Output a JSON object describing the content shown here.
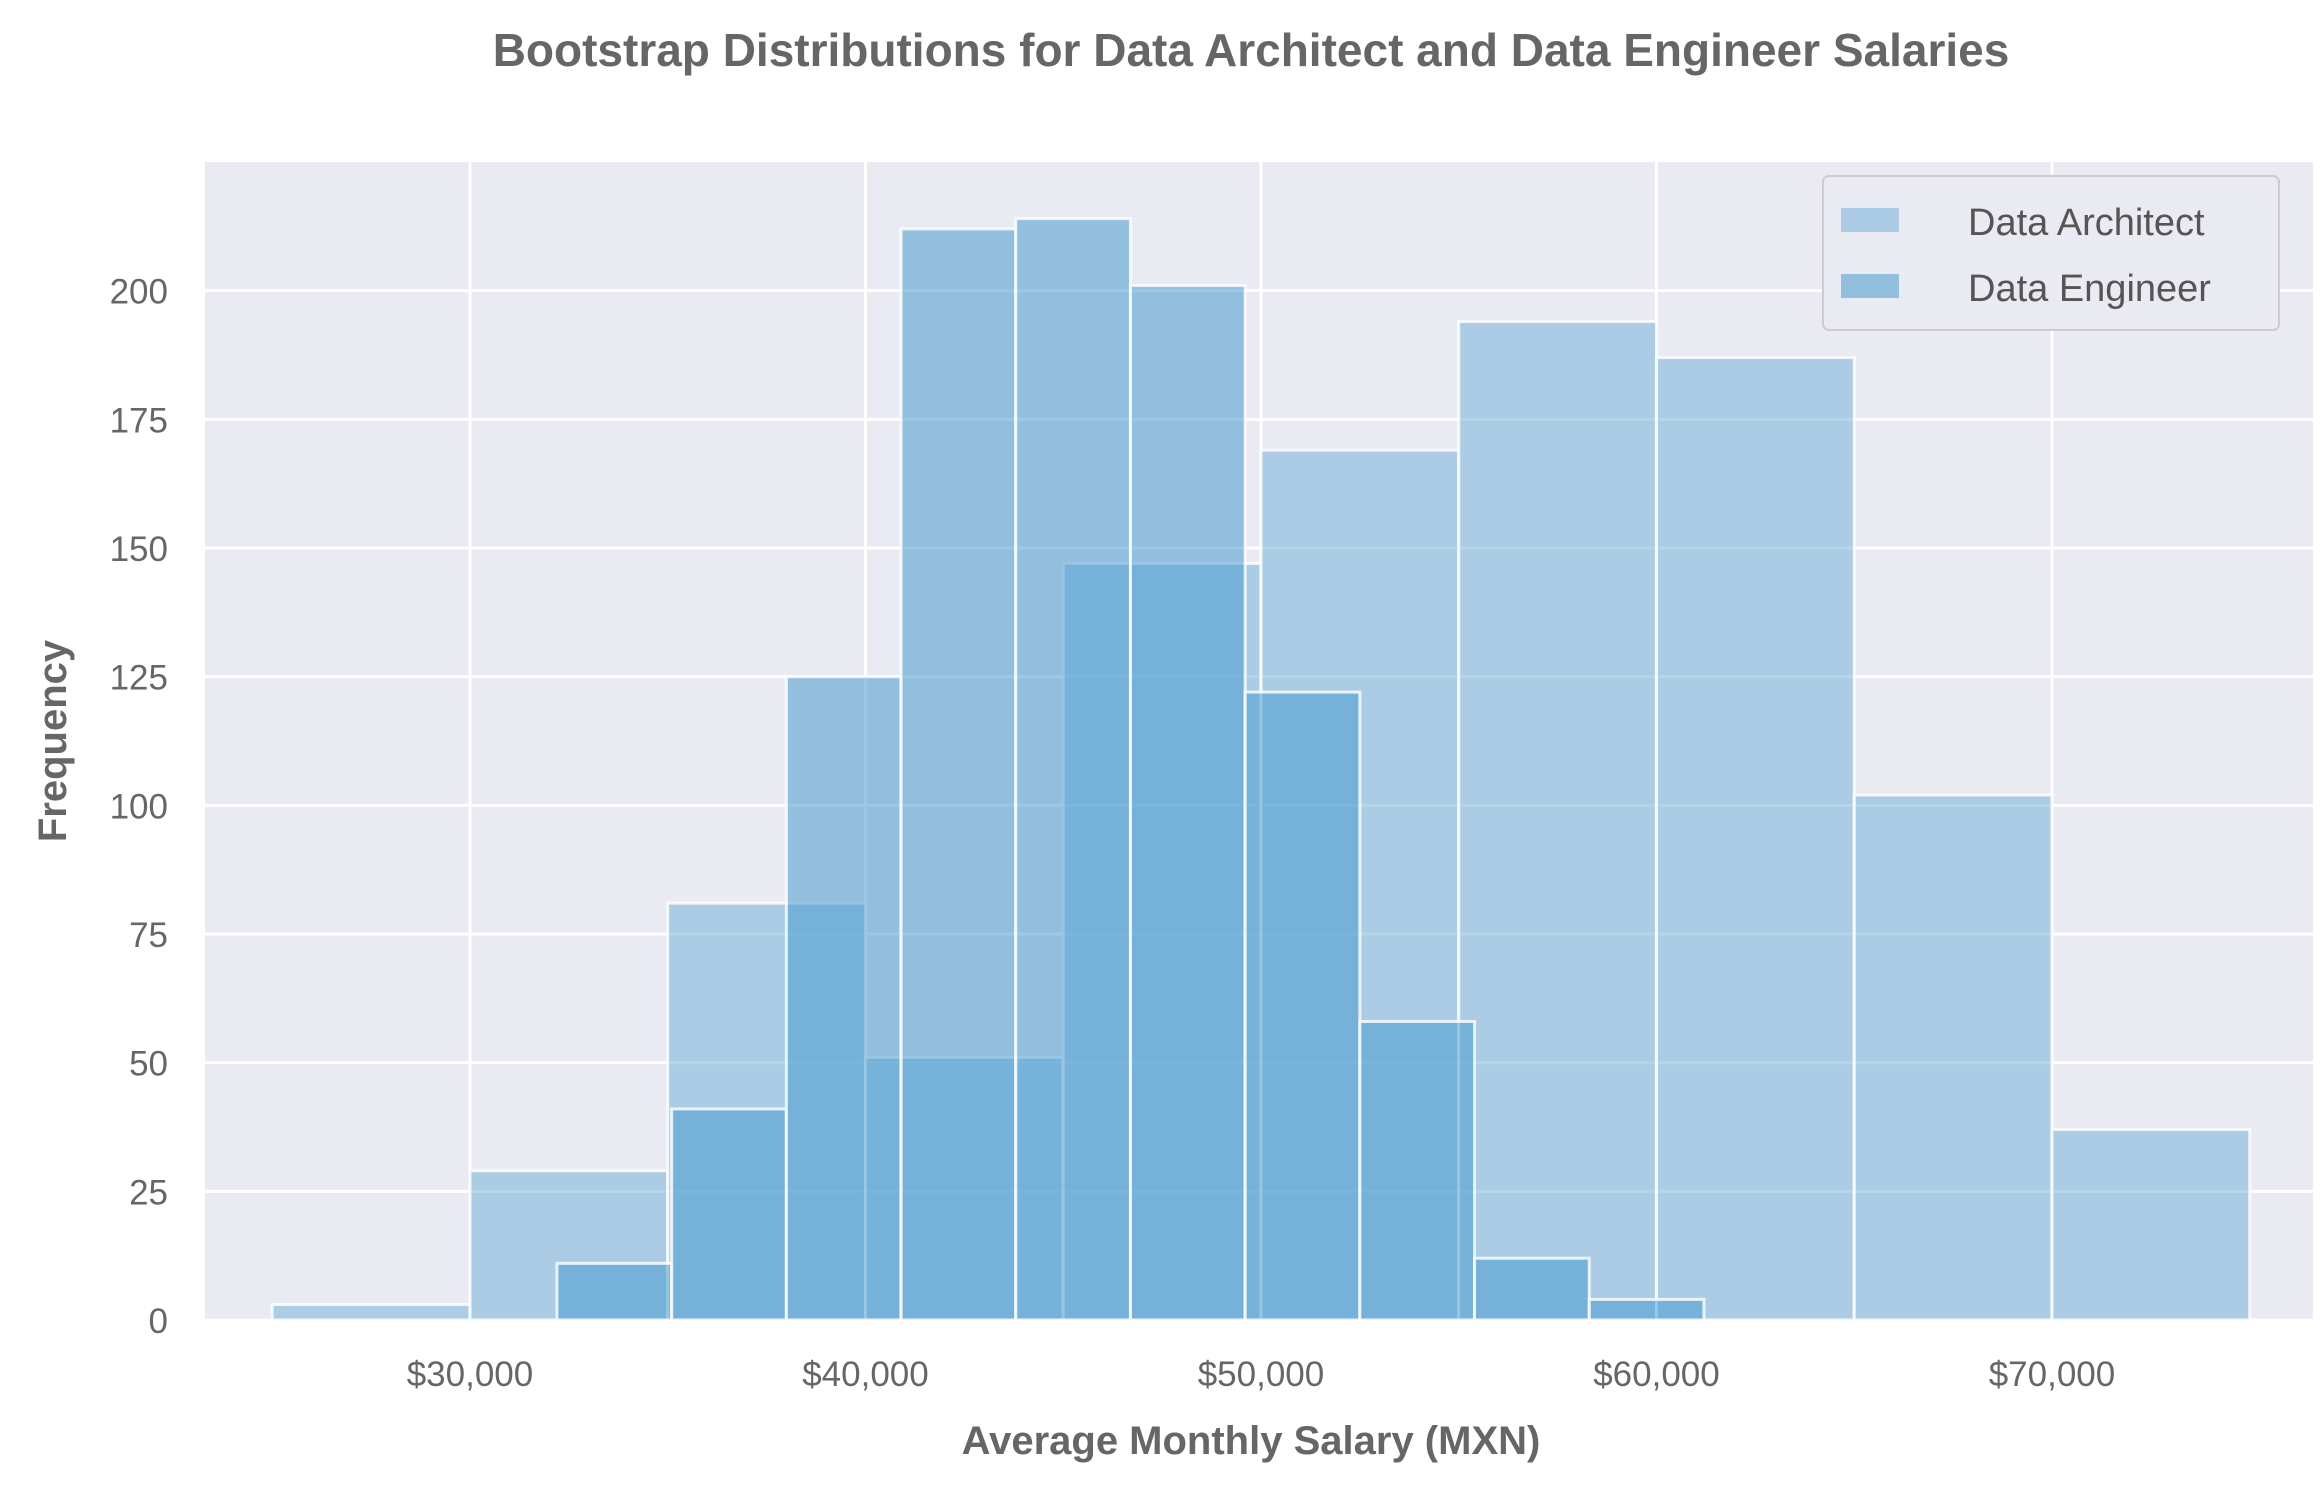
{
  "chart_data": {
    "type": "bar",
    "title": "Bootstrap Distributions for Data Architect and Data Engineer Salaries",
    "xlabel": "Average Monthly Salary (MXN)",
    "ylabel": "Frequency",
    "xlim": [
      23300,
      76600
    ],
    "ylim": [
      0,
      225
    ],
    "x_ticks": [
      30000,
      40000,
      50000,
      60000,
      70000
    ],
    "x_tick_labels": [
      "$30,000",
      "$40,000",
      "$50,000",
      "$60,000",
      "$70,000"
    ],
    "y_ticks": [
      0,
      25,
      50,
      75,
      100,
      125,
      150,
      175,
      200
    ],
    "y_tick_labels": [
      "0",
      "25",
      "50",
      "75",
      "100",
      "125",
      "150",
      "175",
      "200"
    ],
    "grid": true,
    "legend_position": "top-right",
    "series": [
      {
        "name": "Data Architect",
        "color": "#6baed6",
        "opacity": 0.5,
        "bins": [
          {
            "x0": 25000,
            "x1": 30000,
            "count": 3
          },
          {
            "x0": 30000,
            "x1": 35000,
            "count": 29
          },
          {
            "x0": 35000,
            "x1": 40000,
            "count": 81
          },
          {
            "x0": 40000,
            "x1": 45000,
            "count": 51
          },
          {
            "x0": 45000,
            "x1": 50000,
            "count": 147
          },
          {
            "x0": 50000,
            "x1": 55000,
            "count": 169
          },
          {
            "x0": 55000,
            "x1": 60000,
            "count": 194
          },
          {
            "x0": 60000,
            "x1": 65000,
            "count": 187
          },
          {
            "x0": 65000,
            "x1": 70000,
            "count": 102
          },
          {
            "x0": 70000,
            "x1": 75000,
            "count": 37
          }
        ]
      },
      {
        "name": "Data Engineer",
        "color": "#4a9acf",
        "opacity": 0.55,
        "bins": [
          {
            "x0": 32200,
            "x1": 35100,
            "count": 11
          },
          {
            "x0": 35100,
            "x1": 38000,
            "count": 41
          },
          {
            "x0": 38000,
            "x1": 40900,
            "count": 125
          },
          {
            "x0": 40900,
            "x1": 43800,
            "count": 212
          },
          {
            "x0": 43800,
            "x1": 46700,
            "count": 214
          },
          {
            "x0": 46700,
            "x1": 49600,
            "count": 201
          },
          {
            "x0": 49600,
            "x1": 52500,
            "count": 122
          },
          {
            "x0": 52500,
            "x1": 55400,
            "count": 58
          },
          {
            "x0": 55400,
            "x1": 58300,
            "count": 12
          },
          {
            "x0": 58300,
            "x1": 61200,
            "count": 4
          }
        ]
      }
    ]
  }
}
